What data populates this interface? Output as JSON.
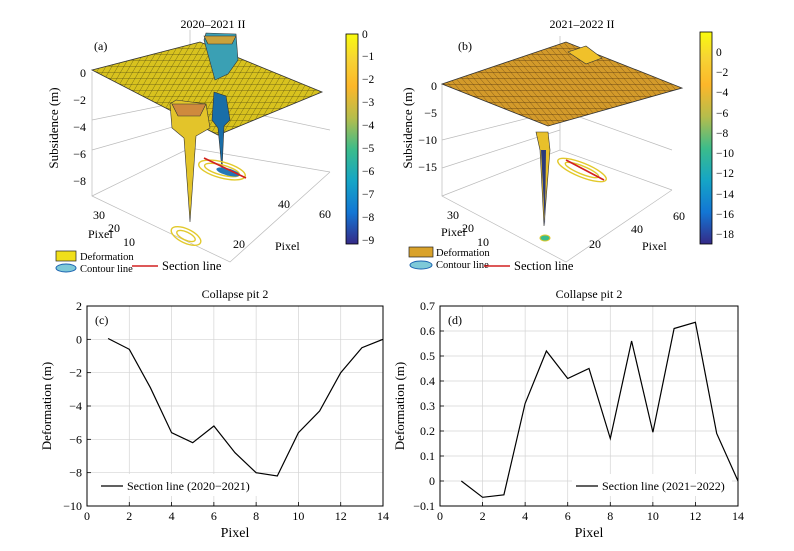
{
  "figure": {
    "panel_a": {
      "tag": "(a)",
      "title": "2020–2021 II",
      "zlabel": "Subsidence (m)",
      "z_ticks": [
        "0",
        "−2",
        "−4",
        "−6",
        "−8"
      ],
      "pixel_label_left": "Pixel",
      "pixel_label_right": "Pixel",
      "y_ticks": [
        "30",
        "20",
        "10"
      ],
      "x_ticks": [
        "20",
        "40",
        "60"
      ],
      "colorbar_ticks": [
        "0",
        "−1",
        "−2",
        "−3",
        "−4",
        "−5",
        "−6",
        "−7",
        "−8",
        "−9"
      ],
      "legend": {
        "deformation": "Deformation",
        "contour": "Contour line",
        "section": "Section line"
      }
    },
    "panel_b": {
      "tag": "(b)",
      "title": "2021–2022 II",
      "zlabel": "Subsidence (m)",
      "z_ticks": [
        "0",
        "−5",
        "−10",
        "−15"
      ],
      "pixel_label_left": "Pixel",
      "pixel_label_right": "Pixel",
      "y_ticks": [
        "30",
        "20",
        "10"
      ],
      "x_ticks": [
        "20",
        "40",
        "60"
      ],
      "colorbar_ticks": [
        "0",
        "−2",
        "−4",
        "−6",
        "−8",
        "−10",
        "−12",
        "−14",
        "−16",
        "−18"
      ],
      "legend": {
        "deformation": "Deformation",
        "contour": "Contour line",
        "section": "Section line"
      }
    }
  },
  "chart_data": [
    {
      "type": "line",
      "panel": "(c)",
      "title": "Collapse pit 2",
      "xlabel": "Pixel",
      "ylabel": "Deformation (m)",
      "xlim": [
        0,
        14
      ],
      "ylim": [
        -10,
        2
      ],
      "xticks": [
        0,
        2,
        4,
        6,
        8,
        10,
        12,
        14
      ],
      "yticks": [
        -10,
        -8,
        -6,
        -4,
        -2,
        0,
        2
      ],
      "series": [
        {
          "name": "Section line (2020−2021)",
          "x": [
            1,
            2,
            3,
            4,
            5,
            6,
            7,
            8,
            9,
            10,
            11,
            12,
            13,
            14
          ],
          "values": [
            0.05,
            -0.6,
            -2.9,
            -5.6,
            -6.2,
            -5.2,
            -6.8,
            -8.0,
            -8.2,
            -5.6,
            -4.3,
            -2.0,
            -0.5,
            0.0
          ]
        }
      ],
      "legend_position": "bottom-left",
      "grid": true
    },
    {
      "type": "line",
      "panel": "(d)",
      "title": "Collapse pit 2",
      "xlabel": "Pixel",
      "ylabel": "Deformation (m)",
      "xlim": [
        0,
        14
      ],
      "ylim": [
        -0.1,
        0.7
      ],
      "xticks": [
        0,
        2,
        4,
        6,
        8,
        10,
        12,
        14
      ],
      "yticks": [
        -0.1,
        0,
        0.1,
        0.2,
        0.3,
        0.4,
        0.5,
        0.6,
        0.7
      ],
      "series": [
        {
          "name": "Section line (2021−2022)",
          "x": [
            1,
            2,
            3,
            4,
            5,
            6,
            7,
            8,
            9,
            10,
            11,
            12,
            13,
            14
          ],
          "values": [
            0.0,
            -0.065,
            -0.055,
            0.31,
            0.52,
            0.41,
            0.45,
            0.17,
            0.56,
            0.195,
            0.61,
            0.635,
            0.19,
            0.0
          ]
        }
      ],
      "legend_position": "bottom-right",
      "grid": true
    }
  ],
  "colors": {
    "surface": "#d9c31f",
    "surface_dark": "#5b5212",
    "line": "#000000",
    "section": "#d22020"
  }
}
